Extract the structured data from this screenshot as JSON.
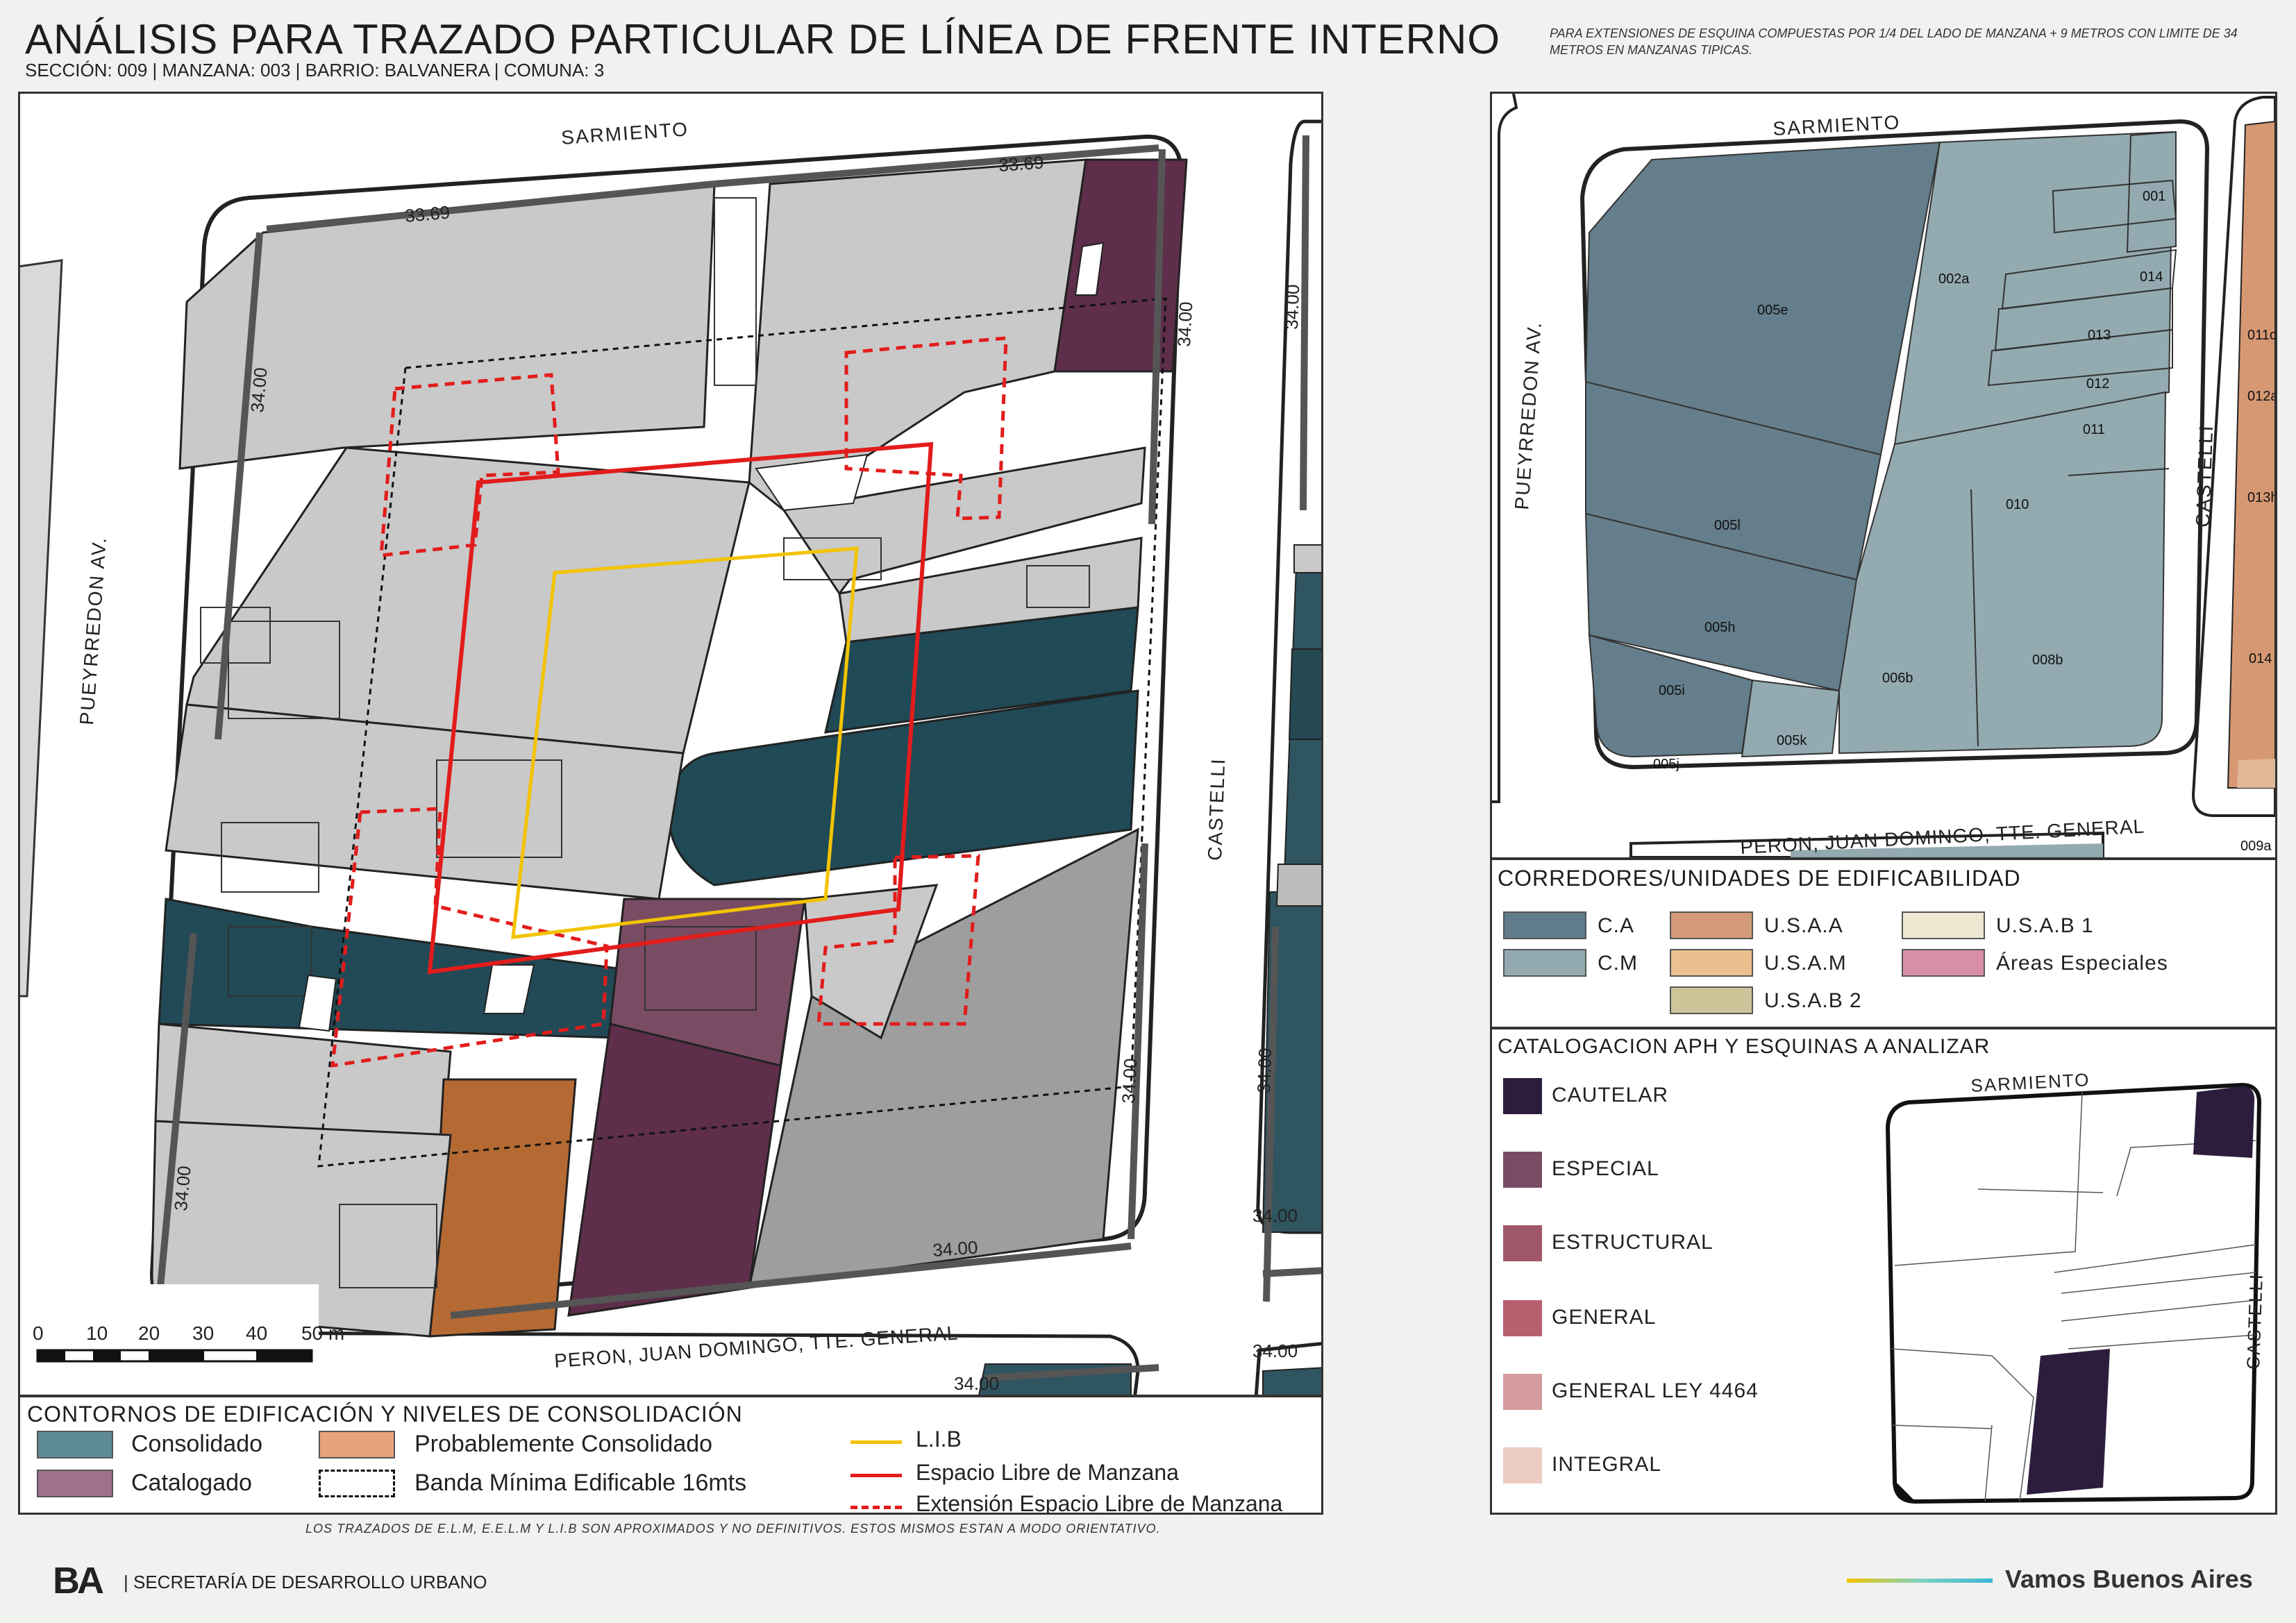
{
  "header": {
    "title": "ANÁLISIS PARA TRAZADO PARTICULAR DE LÍNEA DE FRENTE INTERNO",
    "subtitle": "SECCIÓN: 009 |  MANZANA: 003 | BARRIO: BALVANERA | COMUNA: 3",
    "note": "PARA EXTENSIONES DE ESQUINA COMPUESTAS POR 1/4 DEL LADO DE MANZANA + 9 METROS CON LIMITE DE 34 METROS EN MANZANAS TIPICAS."
  },
  "main_map": {
    "streets": {
      "north": "SARMIENTO",
      "west": "PUEYRREDON AV.",
      "east": "CASTELLI",
      "south": "PERON, JUAN DOMINGO, TTE. GENERAL"
    },
    "dimensions": {
      "north_left": "33.69",
      "north_right": "33.69",
      "west_top": "34.00",
      "west_bottom": "34.00",
      "east_top": "34.00",
      "east_bottom": "34.00",
      "south": "34.00",
      "other_block_top": "34.00",
      "other_block_mid": "34.00",
      "other_block_bottom": "34.00",
      "other_block_south": "34.00",
      "other_block_south2": "34.00",
      "partial_south": "34.00"
    },
    "scale_bar": {
      "labels": [
        "0",
        "10",
        "20",
        "30",
        "40",
        "50 m"
      ]
    }
  },
  "main_legend": {
    "title": "CONTORNOS DE EDIFICACIÓN Y NIVELES DE CONSOLIDACIÓN",
    "items": [
      {
        "label": "Consolidado",
        "color": "#5e8a96"
      },
      {
        "label": "Probablemente Consolidado",
        "color": "#e8a37a"
      },
      {
        "label": "Catalogado",
        "color": "#a0708c"
      },
      {
        "label": "Banda Mínima Edificable 16mts",
        "color": "#ffffff"
      }
    ],
    "lines": [
      {
        "label": "L.I.B",
        "color": "#f2c300",
        "style": "solid"
      },
      {
        "label": "Espacio Libre de Manzana",
        "color": "#e21c1c",
        "style": "solid"
      },
      {
        "label": "Extensión Espacio Libre de Manzana",
        "color": "#e21c1c",
        "style": "dashed"
      }
    ]
  },
  "side_map": {
    "streets": {
      "north": "SARMIENTO",
      "west": "PUEYRREDON AV.",
      "east": "CASTELLI",
      "south": "PERON, JUAN DOMINGO, TTE. GENERAL"
    },
    "parcels": [
      "005e",
      "002a",
      "001",
      "014",
      "013",
      "012",
      "011",
      "010",
      "005l",
      "005h",
      "006b",
      "008b",
      "005i",
      "005k",
      "005j"
    ],
    "neighbor_parcels": [
      "011c",
      "012a",
      "013h",
      "014",
      "009a"
    ]
  },
  "corridors_legend": {
    "title": "CORREDORES/UNIDADES DE EDIFICABILIDAD",
    "items": [
      {
        "label": "C.A",
        "color": "#607b89"
      },
      {
        "label": "U.S.A.A",
        "color": "#d39a7a"
      },
      {
        "label": "U.S.A.B 1",
        "color": "#eee8d2"
      },
      {
        "label": "C.M",
        "color": "#93aab0"
      },
      {
        "label": "U.S.A.M",
        "color": "#ecc08e"
      },
      {
        "label": "Áreas Especiales",
        "color": "#d88fa6"
      },
      {
        "label": "U.S.A.B 2",
        "color": "#cdc49a"
      }
    ]
  },
  "catalog_legend": {
    "title": "CATALOGACION APH Y ESQUINAS A ANALIZAR",
    "items": [
      {
        "label": "CAUTELAR",
        "color": "#2d1d3d"
      },
      {
        "label": "ESPECIAL",
        "color": "#7a4c63"
      },
      {
        "label": "ESTRUCTURAL",
        "color": "#a0576a"
      },
      {
        "label": "GENERAL",
        "color": "#b65f6d"
      },
      {
        "label": "GENERAL LEY 4464",
        "color": "#d59a9d"
      },
      {
        "label": "INTEGRAL",
        "color": "#ecccc3"
      }
    ],
    "mini_map": {
      "north": "SARMIENTO",
      "east": "CASTELLI"
    }
  },
  "footer": {
    "disclaimer": "LOS TRAZADOS DE E.L.M, E.E.L.M Y L.I.B SON APROXIMADOS Y NO DEFINITIVOS. ESTOS MISMOS ESTAN A MODO ORIENTATIVO.",
    "org": "| SECRETARÍA DE DESARROLLO URBANO",
    "logo": "BA",
    "slogan": "Vamos Buenos Aires"
  }
}
